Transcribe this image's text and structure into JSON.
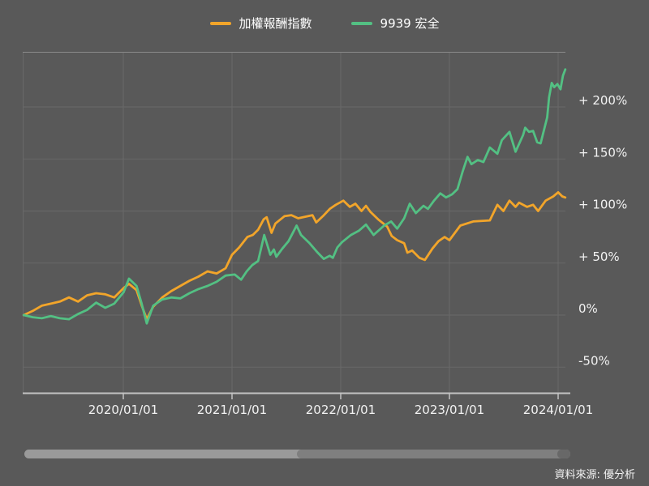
{
  "page": {
    "background_color": "#595959",
    "grid_color": "#696969",
    "axis_color": "#c2c2c2",
    "label_color": "#f2f2f2"
  },
  "legend": {
    "items": [
      {
        "label": "加權報酬指數",
        "color": "#f2a52a"
      },
      {
        "label": "9939 宏全",
        "color": "#53c083"
      }
    ]
  },
  "source_note": "資料來源: 優分析",
  "chart_data": {
    "type": "line",
    "title": "",
    "xlabel": "",
    "ylabel": "",
    "grid": true,
    "legend_position": "top",
    "x_axis": {
      "tick_labels": [
        "2020/01/01",
        "2021/01/01",
        "2022/01/01",
        "2023/01/01",
        "2024/01/01"
      ],
      "range": [
        "2019/02/01",
        "2024/01/25"
      ]
    },
    "y_axis": {
      "unit": "%",
      "ticks": [
        {
          "value": 200,
          "label": "+ 200%"
        },
        {
          "value": 150,
          "label": "+ 150%"
        },
        {
          "value": 100,
          "label": "+ 100%"
        },
        {
          "value": 50,
          "label": "+ 50%"
        },
        {
          "value": 0,
          "label": "0%"
        },
        {
          "value": -50,
          "label": "-50%"
        }
      ],
      "range": [
        -75,
        253
      ]
    },
    "series": [
      {
        "name": "加權報酬指數",
        "color": "#f2a52a",
        "points": [
          [
            "2019/02/01",
            0
          ],
          [
            "2019/03/01",
            4
          ],
          [
            "2019/04/01",
            9
          ],
          [
            "2019/05/01",
            11
          ],
          [
            "2019/06/01",
            13
          ],
          [
            "2019/07/01",
            17
          ],
          [
            "2019/08/01",
            13
          ],
          [
            "2019/09/01",
            19
          ],
          [
            "2019/10/01",
            21
          ],
          [
            "2019/11/01",
            20
          ],
          [
            "2019/12/01",
            17
          ],
          [
            "2020/01/02",
            26
          ],
          [
            "2020/01/20",
            30
          ],
          [
            "2020/02/15",
            24
          ],
          [
            "2020/03/01",
            10
          ],
          [
            "2020/03/19",
            -4
          ],
          [
            "2020/04/10",
            8
          ],
          [
            "2020/05/10",
            17
          ],
          [
            "2020/06/10",
            23
          ],
          [
            "2020/07/10",
            28
          ],
          [
            "2020/08/10",
            33
          ],
          [
            "2020/09/10",
            37
          ],
          [
            "2020/10/10",
            42
          ],
          [
            "2020/11/10",
            40
          ],
          [
            "2020/12/10",
            45
          ],
          [
            "2021/01/01",
            58
          ],
          [
            "2021/01/25",
            65
          ],
          [
            "2021/02/22",
            75
          ],
          [
            "2021/03/10",
            77
          ],
          [
            "2021/03/28",
            82
          ],
          [
            "2021/04/16",
            92
          ],
          [
            "2021/04/26",
            94
          ],
          [
            "2021/05/12",
            79
          ],
          [
            "2021/05/25",
            88
          ],
          [
            "2021/06/25",
            95
          ],
          [
            "2021/07/18",
            96
          ],
          [
            "2021/08/10",
            93
          ],
          [
            "2021/09/28",
            96
          ],
          [
            "2021/10/10",
            89
          ],
          [
            "2021/11/02",
            95
          ],
          [
            "2021/11/25",
            102
          ],
          [
            "2021/12/15",
            106
          ],
          [
            "2022/01/10",
            110
          ],
          [
            "2022/02/01",
            104
          ],
          [
            "2022/02/20",
            107
          ],
          [
            "2022/03/10",
            100
          ],
          [
            "2022/03/25",
            105
          ],
          [
            "2022/04/10",
            99
          ],
          [
            "2022/05/05",
            92
          ],
          [
            "2022/06/05",
            85
          ],
          [
            "2022/06/20",
            76
          ],
          [
            "2022/07/08",
            72
          ],
          [
            "2022/08/01",
            69
          ],
          [
            "2022/08/12",
            60
          ],
          [
            "2022/08/28",
            62
          ],
          [
            "2022/09/22",
            55
          ],
          [
            "2022/10/10",
            53
          ],
          [
            "2022/11/05",
            64
          ],
          [
            "2022/11/25",
            71
          ],
          [
            "2022/12/15",
            75
          ],
          [
            "2023/01/01",
            72
          ],
          [
            "2023/02/07",
            86
          ],
          [
            "2023/03/20",
            90
          ],
          [
            "2023/05/15",
            91
          ],
          [
            "2023/06/10",
            106
          ],
          [
            "2023/06/30",
            100
          ],
          [
            "2023/07/20",
            110
          ],
          [
            "2023/08/10",
            104
          ],
          [
            "2023/08/22",
            108
          ],
          [
            "2023/09/18",
            104
          ],
          [
            "2023/10/08",
            106
          ],
          [
            "2023/10/25",
            100
          ],
          [
            "2023/11/20",
            110
          ],
          [
            "2023/12/15",
            114
          ],
          [
            "2024/01/01",
            118
          ],
          [
            "2024/01/15",
            114
          ],
          [
            "2024/01/25",
            113
          ]
        ]
      },
      {
        "name": "9939 宏全",
        "color": "#53c083",
        "points": [
          [
            "2019/02/01",
            0
          ],
          [
            "2019/03/01",
            -2
          ],
          [
            "2019/04/01",
            -3
          ],
          [
            "2019/05/01",
            -1
          ],
          [
            "2019/06/01",
            -3
          ],
          [
            "2019/07/01",
            -4
          ],
          [
            "2019/08/01",
            1
          ],
          [
            "2019/09/01",
            5
          ],
          [
            "2019/10/01",
            12
          ],
          [
            "2019/11/01",
            7
          ],
          [
            "2019/12/01",
            11
          ],
          [
            "2020/01/02",
            22
          ],
          [
            "2020/01/20",
            35
          ],
          [
            "2020/02/15",
            28
          ],
          [
            "2020/03/01",
            12
          ],
          [
            "2020/03/19",
            -8
          ],
          [
            "2020/04/10",
            9
          ],
          [
            "2020/05/10",
            15
          ],
          [
            "2020/06/10",
            17
          ],
          [
            "2020/07/10",
            16
          ],
          [
            "2020/08/10",
            21
          ],
          [
            "2020/09/10",
            25
          ],
          [
            "2020/10/10",
            28
          ],
          [
            "2020/11/10",
            32
          ],
          [
            "2020/12/10",
            38
          ],
          [
            "2021/01/10",
            39
          ],
          [
            "2021/02/01",
            34
          ],
          [
            "2021/02/20",
            42
          ],
          [
            "2021/03/08",
            48
          ],
          [
            "2021/03/28",
            52
          ],
          [
            "2021/04/18",
            77
          ],
          [
            "2021/05/08",
            58
          ],
          [
            "2021/05/20",
            63
          ],
          [
            "2021/05/28",
            56
          ],
          [
            "2021/06/18",
            64
          ],
          [
            "2021/07/08",
            71
          ],
          [
            "2021/08/05",
            86
          ],
          [
            "2021/08/20",
            77
          ],
          [
            "2021/09/18",
            69
          ],
          [
            "2021/10/15",
            60
          ],
          [
            "2021/11/05",
            54
          ],
          [
            "2021/11/25",
            57
          ],
          [
            "2021/12/05",
            55
          ],
          [
            "2021/12/20",
            65
          ],
          [
            "2022/01/05",
            70
          ],
          [
            "2022/02/05",
            77
          ],
          [
            "2022/03/01",
            81
          ],
          [
            "2022/03/25",
            87
          ],
          [
            "2022/04/20",
            77
          ],
          [
            "2022/05/25",
            86
          ],
          [
            "2022/06/18",
            90
          ],
          [
            "2022/07/08",
            83
          ],
          [
            "2022/08/01",
            93
          ],
          [
            "2022/08/20",
            107
          ],
          [
            "2022/09/10",
            98
          ],
          [
            "2022/10/05",
            105
          ],
          [
            "2022/10/20",
            102
          ],
          [
            "2022/11/10",
            110
          ],
          [
            "2022/12/01",
            117
          ],
          [
            "2022/12/20",
            113
          ],
          [
            "2023/01/10",
            116
          ],
          [
            "2023/01/28",
            121
          ],
          [
            "2023/02/15",
            138
          ],
          [
            "2023/03/01",
            152
          ],
          [
            "2023/03/14",
            145
          ],
          [
            "2023/04/05",
            149
          ],
          [
            "2023/04/24",
            147
          ],
          [
            "2023/05/15",
            161
          ],
          [
            "2023/06/10",
            155
          ],
          [
            "2023/06/25",
            168
          ],
          [
            "2023/07/20",
            176
          ],
          [
            "2023/08/10",
            157
          ],
          [
            "2023/09/05",
            173
          ],
          [
            "2023/09/12",
            180
          ],
          [
            "2023/09/25",
            176
          ],
          [
            "2023/10/08",
            177
          ],
          [
            "2023/10/22",
            166
          ],
          [
            "2023/11/03",
            165
          ],
          [
            "2023/11/25",
            190
          ],
          [
            "2023/12/01",
            209
          ],
          [
            "2023/12/10",
            223
          ],
          [
            "2023/12/18",
            219
          ],
          [
            "2023/12/29",
            222
          ],
          [
            "2024/01/09",
            217
          ],
          [
            "2024/01/17",
            230
          ],
          [
            "2024/01/25",
            236
          ]
        ]
      }
    ]
  }
}
